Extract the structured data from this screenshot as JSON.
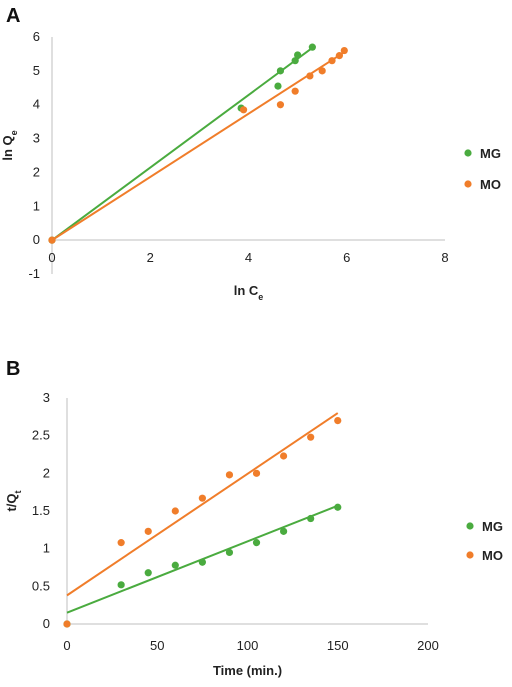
{
  "chart_data": [
    {
      "type": "scatter",
      "panel": "A",
      "xlabel": "ln C",
      "xlabel_sub": "e",
      "ylabel": "ln Q",
      "ylabel_sub": "e",
      "xlim": [
        0,
        8
      ],
      "ylim": [
        -1,
        6
      ],
      "xticks": [
        0,
        2,
        4,
        6,
        8
      ],
      "yticks": [
        -1,
        0,
        1,
        2,
        3,
        4,
        5,
        6
      ],
      "grid": false,
      "legend_position": "right",
      "series": [
        {
          "name": "MG",
          "color": "#4aab3f",
          "points": [
            [
              0,
              0
            ],
            [
              3.85,
              3.9
            ],
            [
              4.6,
              4.55
            ],
            [
              4.65,
              5.0
            ],
            [
              4.95,
              5.3
            ],
            [
              5.0,
              5.47
            ],
            [
              5.3,
              5.7
            ]
          ],
          "fit": [
            [
              0,
              0
            ],
            [
              5.3,
              5.68
            ]
          ]
        },
        {
          "name": "MO",
          "color": "#f07d2a",
          "points": [
            [
              0,
              0
            ],
            [
              3.9,
              3.85
            ],
            [
              4.65,
              4.0
            ],
            [
              4.95,
              4.4
            ],
            [
              5.25,
              4.85
            ],
            [
              5.5,
              5.0
            ],
            [
              5.7,
              5.3
            ],
            [
              5.85,
              5.45
            ],
            [
              5.95,
              5.6
            ]
          ],
          "fit": [
            [
              0,
              0
            ],
            [
              6.0,
              5.6
            ]
          ]
        }
      ]
    },
    {
      "type": "scatter",
      "panel": "B",
      "xlabel": "Time (min.)",
      "ylabel": "t/Q",
      "ylabel_sub": "t",
      "xlim": [
        0,
        200
      ],
      "ylim": [
        0,
        3
      ],
      "xticks": [
        0,
        50,
        100,
        150,
        200
      ],
      "yticks": [
        0,
        0.5,
        1,
        1.5,
        2,
        2.5,
        3
      ],
      "grid": false,
      "legend_position": "right",
      "series": [
        {
          "name": "MG",
          "color": "#4aab3f",
          "points": [
            [
              0,
              0
            ],
            [
              30,
              0.52
            ],
            [
              45,
              0.68
            ],
            [
              60,
              0.78
            ],
            [
              75,
              0.82
            ],
            [
              90,
              0.95
            ],
            [
              105,
              1.08
            ],
            [
              120,
              1.23
            ],
            [
              135,
              1.4
            ],
            [
              150,
              1.55
            ]
          ],
          "fit": [
            [
              0,
              0.15
            ],
            [
              150,
              1.57
            ]
          ]
        },
        {
          "name": "MO",
          "color": "#f07d2a",
          "points": [
            [
              0,
              0
            ],
            [
              30,
              1.08
            ],
            [
              45,
              1.23
            ],
            [
              60,
              1.5
            ],
            [
              75,
              1.67
            ],
            [
              90,
              1.98
            ],
            [
              105,
              2.0
            ],
            [
              120,
              2.23
            ],
            [
              135,
              2.48
            ],
            [
              150,
              2.7
            ]
          ],
          "fit": [
            [
              0,
              0.38
            ],
            [
              150,
              2.8
            ]
          ]
        }
      ]
    }
  ]
}
